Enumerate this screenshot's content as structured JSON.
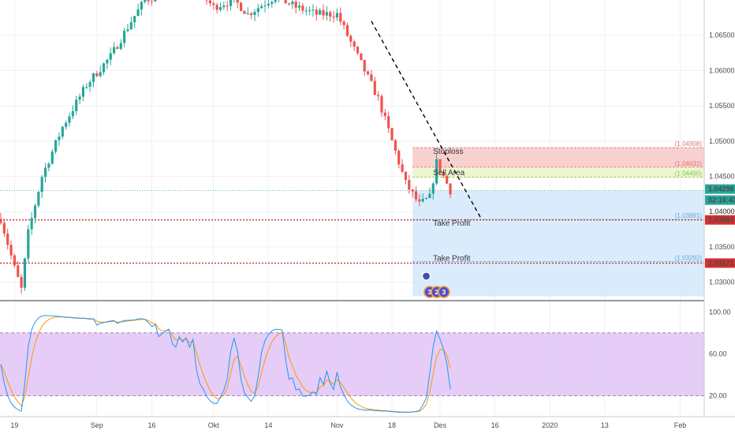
{
  "chart_data": {
    "type": "candlestick",
    "price": {
      "ylim": [
        1.0275,
        1.07
      ],
      "y_ticks": [
        "1.06500",
        "1.06000",
        "1.05500",
        "1.05000",
        "1.04500",
        "1.04000",
        "1.03500",
        "1.03000"
      ],
      "y_tick_values": [
        1.065,
        1.06,
        1.055,
        1.05,
        1.045,
        1.04,
        1.035,
        1.03
      ],
      "close_path": [
        [
          0,
          1.039
        ],
        [
          4,
          1.032
        ],
        [
          6,
          1.029
        ],
        [
          8,
          1.037
        ],
        [
          12,
          1.045
        ],
        [
          18,
          1.052
        ],
        [
          25,
          1.058
        ],
        [
          32,
          1.062
        ],
        [
          38,
          1.067
        ],
        [
          42,
          1.07
        ],
        [
          48,
          1.071
        ],
        [
          56,
          1.072
        ],
        [
          62,
          1.069
        ],
        [
          68,
          1.07
        ],
        [
          72,
          1.068
        ],
        [
          80,
          1.0705
        ],
        [
          86,
          1.069
        ],
        [
          92,
          1.068
        ],
        [
          98,
          1.068
        ],
        [
          104,
          1.062
        ],
        [
          110,
          1.056
        ],
        [
          114,
          1.05
        ],
        [
          118,
          1.044
        ],
        [
          122,
          1.041
        ],
        [
          125,
          1.042
        ],
        [
          127,
          1.047
        ],
        [
          129,
          1.045
        ],
        [
          131,
          1.043
        ]
      ],
      "current_price": "1.04298",
      "current_price_value": 1.04298,
      "countdown": "02:16:43",
      "level_1_value": 1.04,
      "level_1": "1.04000",
      "take_profit_1_mark": "1.03883",
      "take_profit_1_value": 1.03883,
      "take_profit_2_mark": "1.03271",
      "take_profit_2_value": 1.03271,
      "colors": {
        "up": "#26a69a",
        "down": "#ef5350",
        "current": "#26a69a",
        "target": "#d32f2f"
      }
    },
    "zones": [
      {
        "label": "Stoploss",
        "top": 1.04908,
        "bottom": 1.04631,
        "color": "#f8c8c8"
      },
      {
        "label": "Sell Area",
        "top": 1.04631,
        "bottom": 1.0449,
        "color": "#e9f6c8"
      },
      {
        "label": "Take Profit",
        "top": 1.04298,
        "bottom": 1.03891,
        "color": "#d3e9fb"
      },
      {
        "label": "Take Profit",
        "top": 1.03891,
        "bottom": 1.028,
        "color": "#d3e9fb"
      }
    ],
    "zone_levels": [
      {
        "text": "(1.04908)",
        "value": 1.04908,
        "color": "#e57373"
      },
      {
        "text": "(1.04631)",
        "value": 1.04631,
        "color": "#e57373"
      },
      {
        "text": "(1.04490)",
        "value": 1.0449,
        "color": "#8bc34a"
      },
      {
        "text": "(1.03891)",
        "value": 1.03891,
        "color": "#64a5d8"
      },
      {
        "text": "(1.03292)",
        "value": 1.03292,
        "color": "#64a5d8"
      }
    ],
    "trendline": {
      "from": [
        108,
        1.067
      ],
      "to": [
        140,
        1.039
      ],
      "style": "dashed",
      "color": "#000000"
    },
    "stochastic": {
      "ylim": [
        0,
        110
      ],
      "y_ticks": [
        "100.00",
        "60.00",
        "20.00"
      ],
      "y_tick_values": [
        100,
        60,
        20
      ],
      "band": [
        20,
        80
      ],
      "band_color": "#e1c4f7",
      "line_colors": [
        "#2196f3",
        "#ff9800"
      ]
    },
    "x_axis": {
      "labels": [
        "19",
        "Sep",
        "16",
        "Okt",
        "14",
        "Nov",
        "18",
        "Des",
        "16",
        "2020",
        "13",
        "Feb"
      ],
      "bar_index": [
        4,
        28,
        44,
        62,
        78,
        98,
        114,
        128,
        144,
        160,
        176,
        198
      ],
      "last_bar": 131,
      "max_bar": 205
    },
    "event_tags": [
      "3",
      "2",
      "3"
    ]
  }
}
